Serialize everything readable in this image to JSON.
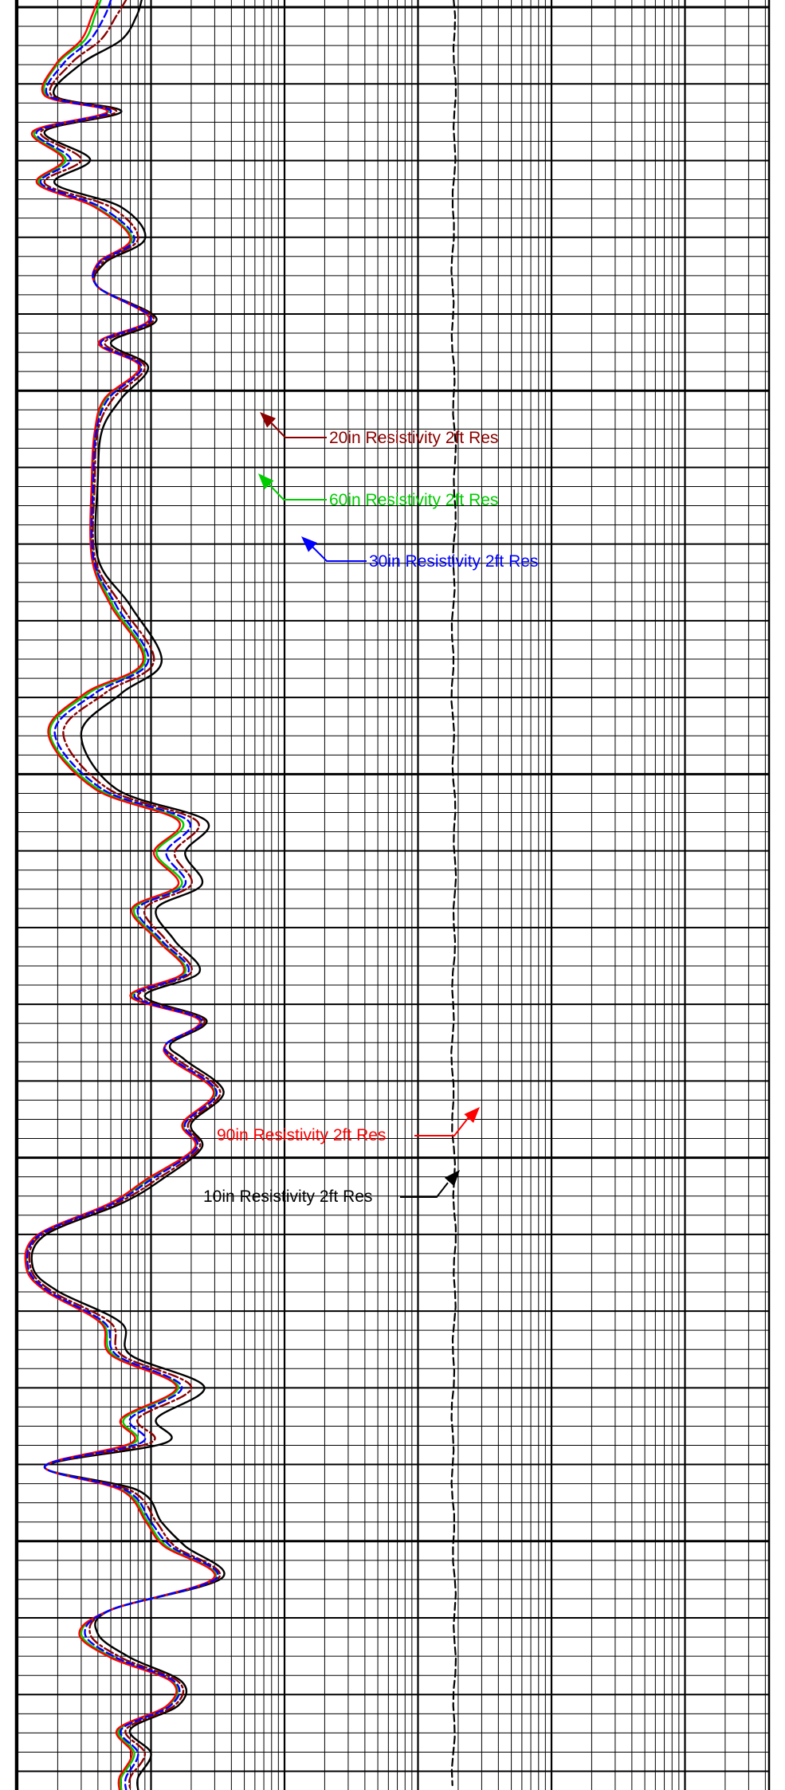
{
  "chart_data": {
    "type": "line",
    "x_scale": "log",
    "grid": true,
    "curves": [
      {
        "name": "10in Resistivity 2ft Res",
        "color": "#000000",
        "style": "solid",
        "depth": [
          0,
          20,
          50,
          80,
          120,
          140,
          165,
          200,
          230,
          260,
          300,
          330,
          360,
          400,
          430,
          460,
          500,
          540,
          600,
          700,
          760,
          830,
          870,
          920,
          990,
          1030,
          1070,
          1110,
          1140,
          1180,
          1220,
          1250,
          1280,
          1310,
          1330,
          1370,
          1410,
          1440,
          1480,
          1510,
          1550,
          1590,
          1620,
          1660,
          1700,
          1740,
          1780,
          1810,
          1840,
          1870,
          1910,
          1940,
          1980,
          2020,
          2050,
          2080,
          2110,
          2140,
          2170,
          2200,
          2230,
          2246
        ],
        "value": [
          8.5,
          7.8,
          6,
          3,
          1.9,
          6,
          1.6,
          3.5,
          1.9,
          6,
          9,
          4.5,
          4,
          11,
          5,
          9.5,
          6,
          4.3,
          4,
          4,
          7,
          12,
          6,
          3,
          5.5,
          26,
          18,
          24,
          11,
          15,
          23,
          9,
          26,
          14,
          18,
          35,
          20,
          24,
          12,
          6,
          1.6,
          1.3,
          2,
          6,
          7,
          25,
          11,
          13,
          1.6,
          8,
          12,
          18,
          34,
          5,
          4,
          7,
          17,
          16,
          7,
          10,
          8,
          8
        ]
      },
      {
        "name": "20in Resistivity 2ft Res",
        "color": "#8B0000",
        "style": "dashdot",
        "depth": [
          0,
          20,
          50,
          80,
          120,
          140,
          165,
          200,
          230,
          260,
          300,
          330,
          360,
          400,
          430,
          460,
          500,
          540,
          600,
          700,
          760,
          830,
          870,
          920,
          990,
          1030,
          1070,
          1110,
          1140,
          1180,
          1220,
          1250,
          1280,
          1310,
          1330,
          1370,
          1410,
          1440,
          1480,
          1510,
          1550,
          1590,
          1620,
          1660,
          1700,
          1740,
          1780,
          1810,
          1840,
          1870,
          1910,
          1940,
          1980,
          2020,
          2050,
          2080,
          2110,
          2140,
          2170,
          2200,
          2230,
          2246
        ],
        "value": [
          6.5,
          5.5,
          4.2,
          2.5,
          1.8,
          5.5,
          1.5,
          3,
          1.6,
          5,
          8,
          4.3,
          4,
          10.5,
          4.5,
          9,
          5.2,
          4,
          3.8,
          3.8,
          6,
          10.5,
          4.5,
          2.2,
          4.8,
          22,
          15,
          20,
          9,
          13,
          20,
          8,
          25,
          13,
          16,
          33,
          19,
          23,
          11,
          5.5,
          1.5,
          1.25,
          1.8,
          5,
          6,
          20,
          8,
          10,
          1.6,
          7,
          11,
          15,
          32,
          5,
          3.5,
          6,
          16,
          15,
          6.5,
          9,
          7,
          7
        ]
      },
      {
        "name": "30in Resistivity 2ft Res",
        "color": "#0000FF",
        "style": "dashed",
        "depth": [
          0,
          20,
          50,
          80,
          120,
          140,
          165,
          200,
          230,
          260,
          300,
          330,
          360,
          400,
          430,
          460,
          500,
          540,
          600,
          700,
          760,
          830,
          870,
          920,
          990,
          1030,
          1070,
          1110,
          1140,
          1180,
          1220,
          1250,
          1280,
          1310,
          1330,
          1370,
          1410,
          1440,
          1480,
          1510,
          1550,
          1590,
          1620,
          1660,
          1700,
          1740,
          1780,
          1810,
          1840,
          1870,
          1910,
          1940,
          1980,
          2020,
          2050,
          2080,
          2110,
          2140,
          2170,
          2200,
          2230,
          2246
        ],
        "value": [
          5,
          4.5,
          3.5,
          2.2,
          1.7,
          5,
          1.4,
          2.5,
          1.5,
          4.2,
          7.5,
          4.1,
          4,
          10,
          4.2,
          8.5,
          4.8,
          3.9,
          3.7,
          3.7,
          5.5,
          9.5,
          3.8,
          1.9,
          4.3,
          19,
          13,
          18,
          8,
          12,
          19,
          7.5,
          24,
          13,
          15,
          31,
          18,
          22,
          10,
          5.2,
          1.45,
          1.2,
          1.7,
          4.5,
          5.5,
          17,
          7,
          8.5,
          1.6,
          6.5,
          10,
          14,
          31,
          5,
          3.2,
          5.5,
          15,
          14,
          6,
          8,
          6.5,
          6.5
        ]
      },
      {
        "name": "60in Resistivity 2ft Res",
        "color": "#00CC00",
        "style": "solid",
        "depth": [
          0,
          20,
          50,
          80,
          120,
          140,
          165,
          200,
          230,
          260,
          300,
          330,
          360,
          400,
          430,
          460,
          500,
          540,
          600,
          700,
          760,
          830,
          870,
          920,
          990,
          1030,
          1070,
          1110,
          1140,
          1180,
          1220,
          1250,
          1280,
          1310,
          1330,
          1370,
          1410,
          1440,
          1480,
          1510,
          1550,
          1590,
          1620,
          1660,
          1700,
          1740,
          1780,
          1810,
          1840,
          1870,
          1910,
          1940,
          1980,
          2020,
          2050,
          2080,
          2110,
          2140,
          2170,
          2200,
          2230,
          2246
        ],
        "value": [
          4.2,
          3.8,
          3.2,
          2,
          1.65,
          4.8,
          1.35,
          2.3,
          1.45,
          3.9,
          7.2,
          4.05,
          4,
          9.8,
          4.1,
          8.3,
          4.6,
          3.85,
          3.65,
          3.65,
          5.2,
          9,
          3.4,
          1.75,
          4,
          17,
          11,
          17,
          7.5,
          11.5,
          18,
          7.2,
          23.5,
          13,
          14.5,
          30,
          17.5,
          21.5,
          9.5,
          5,
          1.42,
          1.18,
          1.65,
          4.3,
          5.2,
          16,
          6.3,
          7.5,
          1.6,
          6.2,
          9.5,
          13,
          30,
          5,
          3,
          5.2,
          14.5,
          13.5,
          5.8,
          7.5,
          6,
          6
        ]
      },
      {
        "name": "90in Resistivity 2ft Res",
        "color": "#FF0000",
        "style": "solid",
        "depth": [
          0,
          20,
          50,
          80,
          120,
          140,
          165,
          200,
          230,
          260,
          300,
          330,
          360,
          400,
          430,
          460,
          500,
          540,
          600,
          700,
          760,
          830,
          870,
          920,
          990,
          1030,
          1070,
          1110,
          1140,
          1180,
          1220,
          1250,
          1280,
          1310,
          1330,
          1370,
          1410,
          1440,
          1480,
          1510,
          1550,
          1590,
          1620,
          1660,
          1700,
          1740,
          1780,
          1810,
          1840,
          1870,
          1910,
          1940,
          1980,
          2020,
          2050,
          2080,
          2110,
          2140,
          2170,
          2200,
          2230,
          2246
        ],
        "value": [
          4,
          3.6,
          3,
          1.95,
          1.6,
          4.7,
          1.3,
          2.2,
          1.4,
          3.8,
          7,
          4,
          4,
          9.7,
          4.05,
          8.2,
          4.5,
          3.8,
          3.6,
          3.6,
          5,
          8.7,
          3.2,
          1.7,
          3.8,
          16,
          10.5,
          16,
          7.2,
          11.2,
          17.5,
          7,
          23,
          13,
          14.2,
          29.5,
          17.2,
          21.2,
          9.2,
          4.9,
          1.4,
          1.16,
          1.62,
          4.2,
          5,
          15.5,
          6,
          7.2,
          1.6,
          6,
          9.2,
          12.5,
          29.5,
          5,
          2.9,
          5,
          14.2,
          13.2,
          5.6,
          7.2,
          5.8,
          5.8
        ]
      },
      {
        "name": "",
        "color": "#000000",
        "style": "dashed",
        "depth": [
          0,
          2246
        ],
        "value": [
          1850,
          1850
        ]
      }
    ],
    "annotations": [
      {
        "text": "20in Resistivity 2ft Res",
        "color": "#8B0000",
        "depth": 548
      },
      {
        "text": "60in Resistivity 2ft Res",
        "color": "#00CC00",
        "depth": 626
      },
      {
        "text": "30in Resistivity 2ft Res",
        "color": "#0000FF",
        "depth": 702
      },
      {
        "text": "90in Resistivity 2ft Res",
        "color": "#FF0000",
        "depth": 1423
      },
      {
        "text": "10in Resistivity 2ft Res",
        "color": "#000000",
        "depth": 1500
      }
    ]
  }
}
